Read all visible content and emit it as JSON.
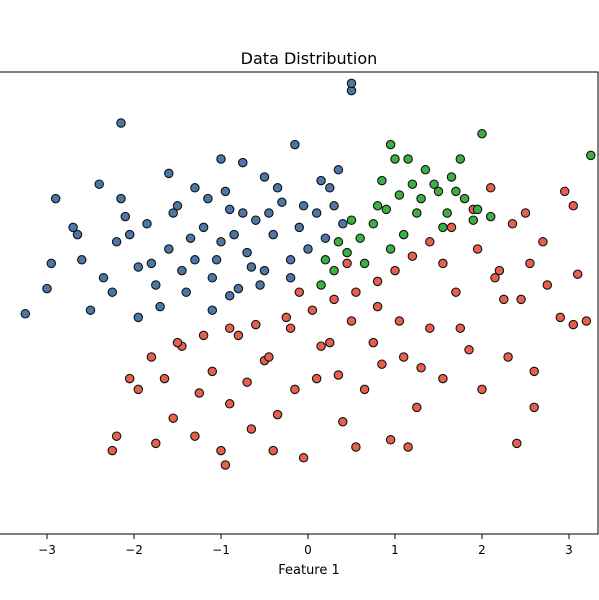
{
  "chart_data": {
    "type": "scatter",
    "title": "Data Distribution",
    "xlabel": "Feature 1",
    "ylabel": "",
    "xlim": [
      -3.5,
      3.3
    ],
    "ylim": [
      -3.2,
      3.2
    ],
    "x_ticks": [
      -3,
      -2,
      -1,
      0,
      1,
      2,
      3
    ],
    "x_tick_labels": [
      "−3",
      "−2",
      "−1",
      "0",
      "1",
      "2",
      "3"
    ],
    "y_ticks_visible": false,
    "grid": false,
    "legend": "none",
    "class_boundaries": "blue (upper-left) and green (upper-right) above a diagonal line; red below it",
    "series": [
      {
        "color": "#4c78a8",
        "points": [
          [
            -3.25,
            -0.15
          ],
          [
            -2.15,
            2.5
          ],
          [
            -2.9,
            1.45
          ],
          [
            -2.7,
            1.05
          ],
          [
            -2.95,
            0.55
          ],
          [
            -3,
            0.2
          ],
          [
            -2.65,
            0.95
          ],
          [
            -2.4,
            1.65
          ],
          [
            -2.35,
            0.35
          ],
          [
            -2.2,
            0.85
          ],
          [
            -2.15,
            1.45
          ],
          [
            -2.1,
            1.2
          ],
          [
            -1.95,
            0.5
          ],
          [
            -1.85,
            1.1
          ],
          [
            -1.75,
            0.25
          ],
          [
            -1.6,
            0.75
          ],
          [
            -1.55,
            1.25
          ],
          [
            -1.4,
            0.15
          ],
          [
            -1.3,
            0.6
          ],
          [
            -1.2,
            1.05
          ],
          [
            -1.1,
            0.35
          ],
          [
            -1,
            0.85
          ],
          [
            -0.9,
            1.3
          ],
          [
            -0.8,
            0.2
          ],
          [
            -0.7,
            0.7
          ],
          [
            -0.6,
            1.15
          ],
          [
            -0.5,
            0.45
          ],
          [
            -0.4,
            0.95
          ],
          [
            -0.3,
            1.4
          ],
          [
            -0.2,
            0.6
          ],
          [
            -0.1,
            1.05
          ],
          [
            0,
            0.75
          ],
          [
            0.1,
            1.25
          ],
          [
            0.2,
            0.9
          ],
          [
            0.3,
            1.35
          ],
          [
            0.4,
            1.1
          ],
          [
            0.5,
            2.95
          ],
          [
            0.5,
            3.05
          ],
          [
            -0.15,
            2.2
          ],
          [
            -1.0,
            2.0
          ],
          [
            -0.75,
            1.95
          ],
          [
            -0.5,
            1.75
          ],
          [
            -1.6,
            1.8
          ],
          [
            -2.25,
            0.15
          ],
          [
            -2.5,
            -0.1
          ],
          [
            -1.95,
            -0.2
          ],
          [
            -1.1,
            -0.1
          ],
          [
            -0.9,
            0.1
          ],
          [
            -1.7,
            -0.05
          ],
          [
            -1.3,
            1.6
          ],
          [
            -0.95,
            1.55
          ],
          [
            -0.35,
            1.6
          ],
          [
            0.15,
            1.7
          ],
          [
            -2.6,
            0.6
          ],
          [
            -1.45,
            0.45
          ],
          [
            -1.05,
            0.6
          ],
          [
            -0.55,
            0.25
          ],
          [
            -0.2,
            0.35
          ],
          [
            0.25,
            1.6
          ],
          [
            -1.8,
            0.55
          ],
          [
            -0.65,
            0.5
          ],
          [
            -1.35,
            0.9
          ],
          [
            -0.85,
            0.95
          ],
          [
            -0.05,
            1.35
          ],
          [
            -2.05,
            0.95
          ],
          [
            -1.5,
            1.35
          ],
          [
            -0.45,
            1.25
          ],
          [
            0.35,
            1.85
          ],
          [
            -1.15,
            1.45
          ],
          [
            -0.75,
            1.25
          ]
        ]
      },
      {
        "color": "#e8604c",
        "points": [
          [
            -2.05,
            -1.05
          ],
          [
            -2.2,
            -1.85
          ],
          [
            -1.95,
            -1.2
          ],
          [
            -1.55,
            -1.6
          ],
          [
            -1.45,
            -0.6
          ],
          [
            -1.3,
            -1.85
          ],
          [
            -1.1,
            -0.95
          ],
          [
            -1,
            -2.05
          ],
          [
            -0.9,
            -1.4
          ],
          [
            -0.8,
            -0.45
          ],
          [
            -0.65,
            -1.75
          ],
          [
            -0.5,
            -0.8
          ],
          [
            -0.35,
            -1.55
          ],
          [
            -0.2,
            -0.35
          ],
          [
            -0.05,
            -2.15
          ],
          [
            0.1,
            -1.05
          ],
          [
            0.25,
            -0.55
          ],
          [
            0.4,
            -1.65
          ],
          [
            0.5,
            -0.25
          ],
          [
            0.65,
            -1.2
          ],
          [
            0.8,
            -0.05
          ],
          [
            0.95,
            -1.9
          ],
          [
            1.1,
            -0.75
          ],
          [
            1.25,
            -1.45
          ],
          [
            1.4,
            -0.35
          ],
          [
            1.55,
            -1.05
          ],
          [
            1.7,
            0.15
          ],
          [
            1.85,
            -0.65
          ],
          [
            2,
            -1.2
          ],
          [
            2.15,
            0.35
          ],
          [
            2.3,
            -0.75
          ],
          [
            2.45,
            0.05
          ],
          [
            2.6,
            -1.45
          ],
          [
            2.75,
            0.25
          ],
          [
            2.9,
            -0.2
          ],
          [
            3.05,
            -0.3
          ],
          [
            3.1,
            0.4
          ],
          [
            3.2,
            -0.25
          ],
          [
            2.95,
            1.55
          ],
          [
            3.05,
            1.35
          ],
          [
            2.7,
            0.85
          ],
          [
            2.5,
            1.25
          ],
          [
            2.35,
            1.1
          ],
          [
            2.1,
            1.6
          ],
          [
            1.9,
            1.3
          ],
          [
            1.65,
            1.05
          ],
          [
            1.4,
            0.85
          ],
          [
            1.2,
            0.65
          ],
          [
            1.0,
            0.45
          ],
          [
            0.8,
            0.3
          ],
          [
            0.55,
            0.15
          ],
          [
            0.3,
            0.05
          ],
          [
            0.05,
            -0.1
          ],
          [
            -0.25,
            -0.2
          ],
          [
            -0.6,
            -0.3
          ],
          [
            -0.9,
            -0.35
          ],
          [
            -1.2,
            -0.45
          ],
          [
            -1.5,
            -0.55
          ],
          [
            -1.8,
            -0.75
          ],
          [
            -1.65,
            -1.05
          ],
          [
            -1.25,
            -1.25
          ],
          [
            -0.7,
            -1.1
          ],
          [
            -0.15,
            -1.2
          ],
          [
            0.35,
            -1.0
          ],
          [
            0.85,
            -0.85
          ],
          [
            1.3,
            -0.9
          ],
          [
            1.75,
            -0.35
          ],
          [
            2.2,
            0.45
          ],
          [
            2.55,
            0.55
          ],
          [
            -0.95,
            -2.25
          ],
          [
            -0.4,
            -2.05
          ],
          [
            0.55,
            -2.0
          ],
          [
            1.15,
            -2.0
          ],
          [
            -2.25,
            -2.05
          ],
          [
            -1.75,
            -1.95
          ],
          [
            2.4,
            -1.95
          ],
          [
            2.6,
            -0.95
          ],
          [
            0.75,
            -0.55
          ],
          [
            0.15,
            -0.6
          ],
          [
            -0.45,
            -0.75
          ],
          [
            1.55,
            0.55
          ],
          [
            1.95,
            0.75
          ],
          [
            2.25,
            0.05
          ],
          [
            1.05,
            -0.25
          ],
          [
            0.45,
            0.55
          ],
          [
            -0.1,
            0.15
          ]
        ]
      },
      {
        "color": "#3cb043",
        "points": [
          [
            0.15,
            0.25
          ],
          [
            0.3,
            0.45
          ],
          [
            0.45,
            0.7
          ],
          [
            0.6,
            0.9
          ],
          [
            0.75,
            1.1
          ],
          [
            0.9,
            1.3
          ],
          [
            1.05,
            1.5
          ],
          [
            1.2,
            1.65
          ],
          [
            1.35,
            1.85
          ],
          [
            1.5,
            1.55
          ],
          [
            1.65,
            1.75
          ],
          [
            1.8,
            1.45
          ],
          [
            1.95,
            1.3
          ],
          [
            2.1,
            1.2
          ],
          [
            1.0,
            2.0
          ],
          [
            1.15,
            2.0
          ],
          [
            0.95,
            2.2
          ],
          [
            1.75,
            2.0
          ],
          [
            1.45,
            1.65
          ],
          [
            2.0,
            2.35
          ],
          [
            3.25,
            2.05
          ],
          [
            0.85,
            1.7
          ],
          [
            1.25,
            1.25
          ],
          [
            0.5,
            1.15
          ],
          [
            0.65,
            0.55
          ],
          [
            1.1,
            0.95
          ],
          [
            1.6,
            1.25
          ],
          [
            0.95,
            0.75
          ],
          [
            0.35,
            0.85
          ],
          [
            1.3,
            1.45
          ],
          [
            0.8,
            1.35
          ],
          [
            1.55,
            1.05
          ],
          [
            0.2,
            0.6
          ],
          [
            1.7,
            1.55
          ],
          [
            1.9,
            1.15
          ]
        ]
      }
    ]
  }
}
